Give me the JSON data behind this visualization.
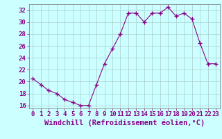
{
  "x": [
    0,
    1,
    2,
    3,
    4,
    5,
    6,
    7,
    8,
    9,
    10,
    11,
    12,
    13,
    14,
    15,
    16,
    17,
    18,
    19,
    20,
    21,
    22,
    23
  ],
  "y": [
    20.5,
    19.5,
    18.5,
    18.0,
    17.0,
    16.5,
    16.0,
    16.0,
    19.5,
    23.0,
    25.5,
    28.0,
    31.5,
    31.5,
    30.0,
    31.5,
    31.5,
    32.5,
    31.0,
    31.5,
    30.5,
    26.5,
    23.0,
    23.0
  ],
  "line_color": "#880088",
  "marker": "+",
  "marker_size": 4,
  "bg_color": "#ccffff",
  "grid_color": "#aacccc",
  "xlabel": "Windchill (Refroidissement éolien,°C)",
  "xlabel_color": "#880088",
  "xlabel_fontsize": 7.5,
  "tick_color": "#880088",
  "tick_fontsize": 6.5,
  "yticks": [
    16,
    18,
    20,
    22,
    24,
    26,
    28,
    30,
    32
  ],
  "xticks": [
    0,
    1,
    2,
    3,
    4,
    5,
    6,
    7,
    8,
    9,
    10,
    11,
    12,
    13,
    14,
    15,
    16,
    17,
    18,
    19,
    20,
    21,
    22,
    23
  ],
  "xlim": [
    -0.5,
    23.5
  ],
  "ylim": [
    15.5,
    33.0
  ]
}
